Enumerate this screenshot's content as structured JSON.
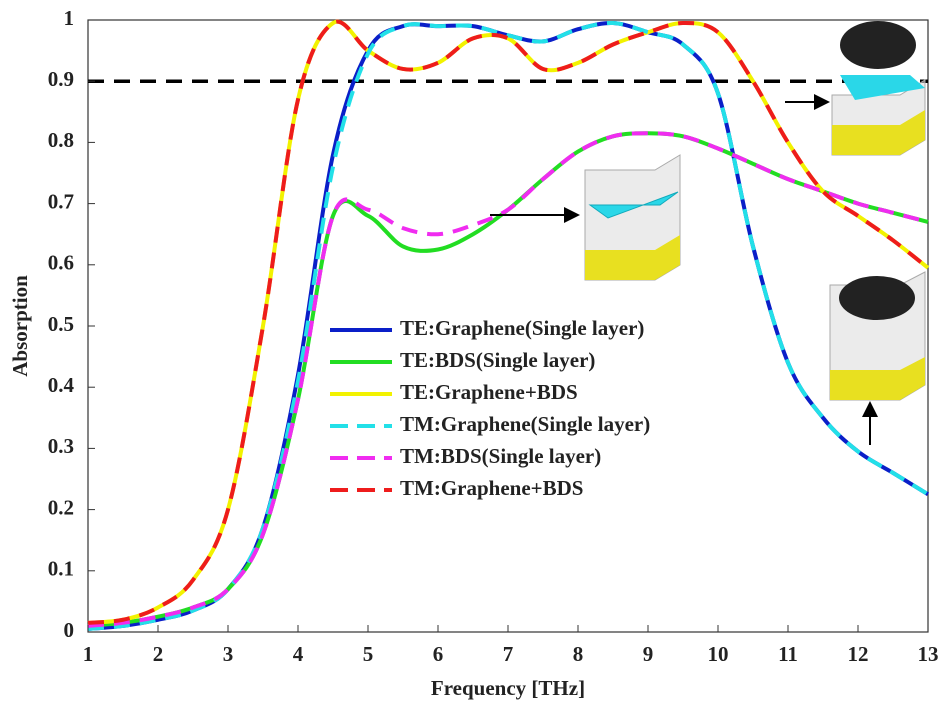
{
  "chart_data": {
    "type": "line",
    "x_label": "Frequency [THz]",
    "y_label": "Absorption",
    "x": [
      1,
      1.5,
      2,
      2.5,
      3,
      3.5,
      4,
      4.5,
      5,
      5.5,
      6,
      6.5,
      7,
      7.5,
      8,
      8.5,
      9,
      9.5,
      10,
      10.5,
      11,
      11.5,
      12,
      12.5,
      13
    ],
    "series": [
      {
        "name": "TE:Graphene(Single layer)",
        "color": "#0a1fc8",
        "line_style": "solid",
        "values": [
          0.005,
          0.01,
          0.02,
          0.035,
          0.07,
          0.17,
          0.42,
          0.78,
          0.95,
          0.99,
          0.99,
          0.99,
          0.975,
          0.965,
          0.985,
          0.995,
          0.98,
          0.96,
          0.88,
          0.63,
          0.44,
          0.35,
          0.295,
          0.26,
          0.225
        ]
      },
      {
        "name": "TE:BDS(Single layer)",
        "color": "#22dd22",
        "line_style": "solid",
        "values": [
          0.01,
          0.015,
          0.025,
          0.04,
          0.07,
          0.16,
          0.38,
          0.68,
          0.68,
          0.63,
          0.625,
          0.65,
          0.69,
          0.74,
          0.785,
          0.81,
          0.815,
          0.81,
          0.79,
          0.765,
          0.74,
          0.72,
          0.7,
          0.685,
          0.67
        ]
      },
      {
        "name": "TE:Graphene+BDS",
        "color": "#f2f200",
        "line_style": "solid",
        "values": [
          0.015,
          0.02,
          0.04,
          0.085,
          0.2,
          0.5,
          0.87,
          0.995,
          0.95,
          0.92,
          0.93,
          0.97,
          0.97,
          0.92,
          0.93,
          0.96,
          0.98,
          0.995,
          0.98,
          0.9,
          0.8,
          0.72,
          0.68,
          0.64,
          0.595
        ]
      },
      {
        "name": "TM:Graphene(Single layer)",
        "color": "#22e0e8",
        "line_style": "dashed",
        "values": [
          0.005,
          0.01,
          0.02,
          0.035,
          0.07,
          0.17,
          0.41,
          0.76,
          0.945,
          0.99,
          0.99,
          0.99,
          0.975,
          0.965,
          0.985,
          0.995,
          0.98,
          0.96,
          0.88,
          0.63,
          0.44,
          0.35,
          0.295,
          0.26,
          0.225
        ]
      },
      {
        "name": "TM:BDS(Single layer)",
        "color": "#f02cf0",
        "line_style": "dashed",
        "values": [
          0.01,
          0.015,
          0.025,
          0.04,
          0.07,
          0.16,
          0.38,
          0.68,
          0.69,
          0.66,
          0.65,
          0.665,
          0.69,
          0.74,
          0.785,
          0.81,
          0.815,
          0.81,
          0.79,
          0.765,
          0.74,
          0.72,
          0.7,
          0.685,
          0.67
        ]
      },
      {
        "name": "TM:Graphene+BDS",
        "color": "#ee1c1c",
        "line_style": "dashed",
        "values": [
          0.015,
          0.02,
          0.04,
          0.085,
          0.2,
          0.5,
          0.87,
          0.995,
          0.95,
          0.92,
          0.93,
          0.97,
          0.97,
          0.92,
          0.93,
          0.96,
          0.98,
          0.995,
          0.98,
          0.9,
          0.8,
          0.72,
          0.68,
          0.64,
          0.595
        ]
      }
    ],
    "hline": {
      "value": 0.9,
      "color": "#000000",
      "line_style": "dashed"
    },
    "xlim": [
      1,
      13
    ],
    "xticks": [
      1,
      2,
      3,
      4,
      5,
      6,
      7,
      8,
      9,
      10,
      11,
      12,
      13
    ],
    "ylim": [
      0,
      1
    ],
    "yticks": [
      0,
      0.1,
      0.2,
      0.3,
      0.4,
      0.5,
      0.6,
      0.7,
      0.8,
      0.9,
      1
    ],
    "grid": false,
    "legend": "center"
  }
}
